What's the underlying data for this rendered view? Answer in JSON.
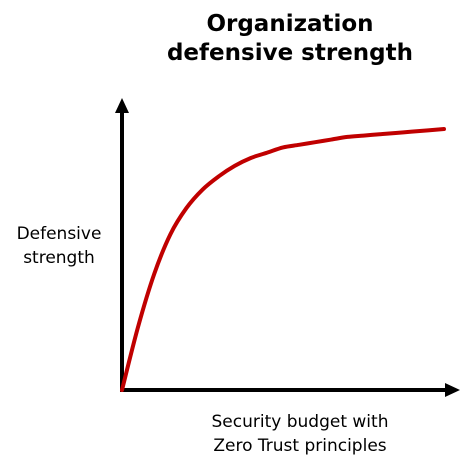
{
  "chart_data": {
    "type": "line",
    "title_lines": [
      "Organization",
      "defensive strength"
    ],
    "ylabel_lines": [
      "Defensive",
      "strength"
    ],
    "xlabel_lines": [
      "Security budget with",
      "Zero Trust principles"
    ],
    "grid": false,
    "legend": "none",
    "series": [
      {
        "color": "#c00000",
        "x": [
          0,
          0.05,
          0.1,
          0.15,
          0.2,
          0.25,
          0.3,
          0.35,
          0.4,
          0.45,
          0.5,
          0.55,
          0.6,
          0.65,
          0.7,
          0.75,
          0.8,
          0.85,
          0.9,
          0.95,
          1.0
        ],
        "y": [
          0,
          0.24,
          0.44,
          0.59,
          0.69,
          0.76,
          0.81,
          0.85,
          0.88,
          0.9,
          0.92,
          0.93,
          0.94,
          0.95,
          0.96,
          0.965,
          0.97,
          0.975,
          0.98,
          0.985,
          0.99
        ]
      }
    ],
    "xlim": [
      0,
      1
    ],
    "ylim": [
      0,
      1.1
    ]
  },
  "colors": {
    "axis": "#000000",
    "curve": "#c00000"
  }
}
